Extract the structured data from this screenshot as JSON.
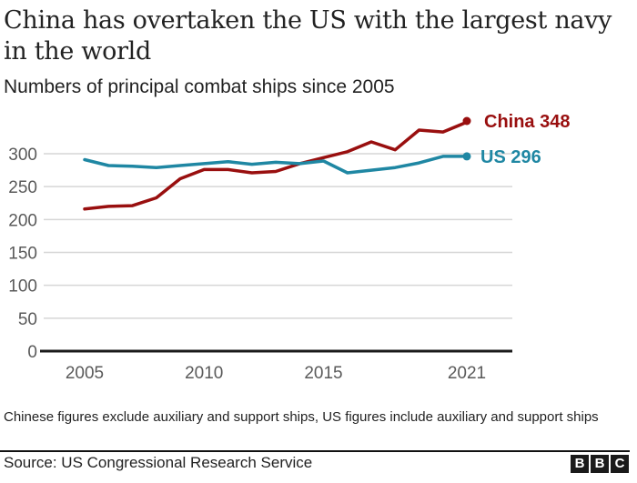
{
  "header": {
    "title": "China has overtaken the US with the largest navy in the world",
    "subtitle": "Numbers of principal combat ships since 2005"
  },
  "footer": {
    "note": "Chinese figures exclude auxiliary and support ships, US figures include auxiliary and support ships",
    "source": "Source: US Congressional Research Service",
    "logo_letters": [
      "B",
      "B",
      "C"
    ]
  },
  "colors": {
    "china": "#990f0f",
    "us": "#1f87a3",
    "grid": "#d6d6d6",
    "axis": "#1a1a1a",
    "tick_text": "#5a5a5a"
  },
  "chart_data": {
    "type": "line",
    "title": "China has overtaken the US with the largest navy in the world",
    "subtitle": "Numbers of principal combat ships since 2005",
    "xlabel": "",
    "ylabel": "",
    "x": [
      2005,
      2006,
      2007,
      2008,
      2009,
      2010,
      2011,
      2012,
      2013,
      2014,
      2015,
      2016,
      2017,
      2018,
      2019,
      2020,
      2021
    ],
    "xlim": [
      2005,
      2021
    ],
    "ylim": [
      0,
      300
    ],
    "x_ticks": [
      2005,
      2010,
      2015,
      2021
    ],
    "x_tick_labels": [
      "2005",
      "2010",
      "2015",
      "2021"
    ],
    "y_ticks": [
      0,
      50,
      100,
      150,
      200,
      250,
      300
    ],
    "y_tick_labels": [
      "0",
      "50",
      "100",
      "150",
      "200",
      "250",
      "300"
    ],
    "grid": true,
    "legend": "direct-labels-right",
    "series": [
      {
        "name": "China",
        "end_label": "China 348",
        "values": [
          216,
          220,
          221,
          233,
          262,
          276,
          276,
          271,
          273,
          285,
          294,
          303,
          318,
          306,
          336,
          333,
          348
        ]
      },
      {
        "name": "US",
        "end_label": "US 296",
        "values": [
          291,
          282,
          281,
          279,
          282,
          285,
          288,
          284,
          287,
          285,
          289,
          271,
          275,
          279,
          286,
          296,
          296
        ]
      }
    ]
  }
}
